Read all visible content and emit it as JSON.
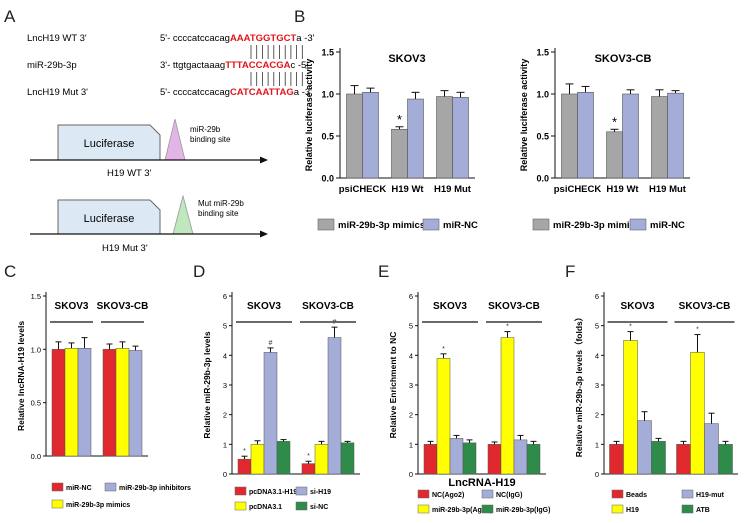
{
  "colors": {
    "red": "#e0292e",
    "yellow": "#ffff00",
    "lavender": "#a4acd8",
    "green": "#2e8b4a",
    "gray": "#a6a6a6",
    "dark_green": "#1f8f3a",
    "luciferase_fill": "#dde8f5",
    "site_wt": "#e3b4e6",
    "site_mut": "#bfe8bf",
    "seq_red": "#e1141b"
  },
  "panelA": {
    "letter": "A",
    "rows": [
      {
        "label": "LncH19  WT 3'",
        "prefix": "5'- ccccatccacag",
        "highlight": "AAATGGTGCT",
        "suffix": "a   -3'"
      },
      {
        "label": "miR-29b-3p",
        "prefix": "3'- ttgtgactaaag",
        "highlight": "TTTACCACGA",
        "suffix": "c -5'"
      },
      {
        "label": "LncH19  Mut 3'",
        "prefix": "5'- ccccatccacag",
        "highlight": "CATCAATTAG",
        "suffix": "a -3'"
      }
    ],
    "constructs": [
      {
        "box_label": "Luciferase",
        "site_label_1": "miR-29b",
        "site_label_2": "binding site",
        "caption": "H19 WT 3'"
      },
      {
        "box_label": "Luciferase",
        "site_label_1": "Mut miR-29b",
        "site_label_2": "binding site",
        "caption": "H19 Mut 3'"
      }
    ]
  },
  "panelB": {
    "letter": "B",
    "ylabel": "Relative luciferase activity",
    "categories": [
      "psiCHECK",
      "H19 Wt",
      "H19 Mut"
    ],
    "legend": [
      "miR-29b-3p mimics",
      "miR-NC"
    ],
    "charts": [
      {
        "title": "SKOV3",
        "ylim": [
          0,
          1.5
        ],
        "ticks": [
          "0.0",
          "0.5",
          "1.0",
          "1.5"
        ],
        "series": [
          {
            "name": "miR-29b-3p mimics",
            "values": [
              1.0,
              0.58,
              0.97
            ],
            "errors": [
              0.1,
              0.03,
              0.07
            ]
          },
          {
            "name": "miR-NC",
            "values": [
              1.02,
              0.94,
              0.96
            ],
            "errors": [
              0.05,
              0.08,
              0.06
            ]
          }
        ],
        "annotations": [
          {
            "category": 1,
            "series": 0,
            "text": "*"
          }
        ]
      },
      {
        "title": "SKOV3-CB",
        "ylim": [
          0,
          1.5
        ],
        "ticks": [
          "0.0",
          "0.5",
          "1.0",
          "1.5"
        ],
        "series": [
          {
            "name": "miR-29b-3p mimics",
            "values": [
              1.0,
              0.55,
              0.97
            ],
            "errors": [
              0.12,
              0.03,
              0.08
            ]
          },
          {
            "name": "miR-NC",
            "values": [
              1.02,
              1.0,
              1.01
            ],
            "errors": [
              0.07,
              0.05,
              0.03
            ]
          }
        ],
        "annotations": [
          {
            "category": 1,
            "series": 0,
            "text": "*"
          }
        ]
      }
    ]
  },
  "chart_data": [
    {
      "letter": "C",
      "type": "bar",
      "ylabel": "Relative lncRNA-H19 levels",
      "ylim": [
        0,
        1.5
      ],
      "ticks": [
        "0.0",
        "0.5",
        "1.0",
        "1.5"
      ],
      "groups": [
        "SKOV3",
        "SKOV3-CB"
      ],
      "series": [
        {
          "name": "miR-NC",
          "values": [
            1.0,
            1.0
          ],
          "errors": [
            0.07,
            0.05
          ]
        },
        {
          "name": "miR-29b-3p mimics",
          "values": [
            1.01,
            1.01
          ],
          "errors": [
            0.05,
            0.06
          ]
        },
        {
          "name": "miR-29b-3p inhibitors",
          "values": [
            1.01,
            0.99
          ],
          "errors": [
            0.1,
            0.04
          ]
        }
      ],
      "annotations": []
    },
    {
      "letter": "D",
      "type": "bar",
      "ylabel": "Relative miR-29b-3p levels",
      "ylim": [
        0,
        6
      ],
      "ticks": [
        "0",
        "1",
        "2",
        "3",
        "4",
        "5",
        "6"
      ],
      "groups": [
        "SKOV3",
        "SKOV3-CB"
      ],
      "series": [
        {
          "name": "pcDNA3.1-H19",
          "values": [
            0.5,
            0.35
          ],
          "errors": [
            0.1,
            0.08
          ]
        },
        {
          "name": "pcDNA3.1",
          "values": [
            1.0,
            1.0
          ],
          "errors": [
            0.12,
            0.1
          ]
        },
        {
          "name": "si-H19",
          "values": [
            4.1,
            4.6
          ],
          "errors": [
            0.15,
            0.35
          ]
        },
        {
          "name": "si-NC",
          "values": [
            1.1,
            1.05
          ],
          "errors": [
            0.06,
            0.05
          ]
        }
      ],
      "annotations": [
        {
          "group": 0,
          "series": 0,
          "text": "*"
        },
        {
          "group": 0,
          "series": 2,
          "text": "#"
        },
        {
          "group": 1,
          "series": 0,
          "text": "*"
        },
        {
          "group": 1,
          "series": 2,
          "text": "#"
        }
      ]
    },
    {
      "letter": "E",
      "type": "bar",
      "ylabel": "Relative Enrichment to NC",
      "xlabel": "LncRNA-H19",
      "ylim": [
        0,
        6
      ],
      "ticks": [
        "0",
        "1",
        "2",
        "3",
        "4",
        "5",
        "6"
      ],
      "groups": [
        "SKOV3",
        "SKOV3-CB"
      ],
      "series": [
        {
          "name": "NC(Ago2)",
          "values": [
            1.0,
            1.0
          ],
          "errors": [
            0.1,
            0.08
          ]
        },
        {
          "name": "miR-29b-3p(Ago2)",
          "values": [
            3.9,
            4.6
          ],
          "errors": [
            0.15,
            0.2
          ]
        },
        {
          "name": "NC(IgG)",
          "values": [
            1.2,
            1.15
          ],
          "errors": [
            0.1,
            0.15
          ]
        },
        {
          "name": "miR-29b-3p(IgG)",
          "values": [
            1.05,
            1.0
          ],
          "errors": [
            0.1,
            0.1
          ]
        }
      ],
      "annotations": [
        {
          "group": 0,
          "series": 1,
          "text": "*"
        },
        {
          "group": 1,
          "series": 1,
          "text": "*"
        }
      ]
    },
    {
      "letter": "F",
      "type": "bar",
      "ylabel": "Relative miR-29b-3p levels（folds）",
      "ylim": [
        0,
        6
      ],
      "ticks": [
        "0",
        "1",
        "2",
        "3",
        "4",
        "5",
        "6"
      ],
      "groups": [
        "SKOV3",
        "SKOV3-CB"
      ],
      "series": [
        {
          "name": "Beads",
          "values": [
            1.0,
            1.0
          ],
          "errors": [
            0.1,
            0.1
          ]
        },
        {
          "name": "H19",
          "values": [
            4.5,
            4.1
          ],
          "errors": [
            0.3,
            0.6
          ]
        },
        {
          "name": "H19-mut",
          "values": [
            1.8,
            1.7
          ],
          "errors": [
            0.3,
            0.35
          ]
        },
        {
          "name": "ATB",
          "values": [
            1.1,
            1.0
          ],
          "errors": [
            0.1,
            0.1
          ]
        }
      ],
      "annotations": [
        {
          "group": 0,
          "series": 1,
          "text": "*"
        },
        {
          "group": 1,
          "series": 1,
          "text": "*"
        }
      ]
    }
  ]
}
